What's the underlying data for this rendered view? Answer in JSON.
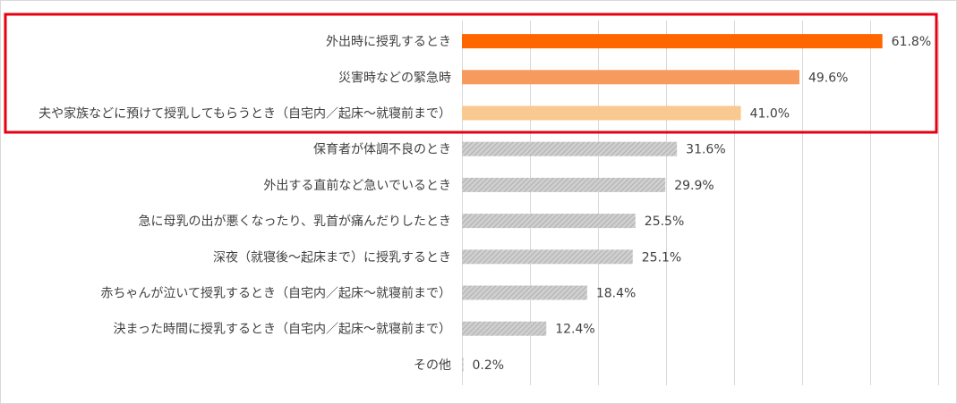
{
  "chart_data": {
    "type": "bar",
    "orientation": "horizontal",
    "categories": [
      "外出時に授乳するとき",
      "災害時などの緊急時",
      "夫や家族などに預けて授乳してもらうとき（自宅内／起床〜就寝前まで）",
      "保育者が体調不良のとき",
      "外出する直前など急いでいるとき",
      "急に母乳の出が悪くなったり、乳首が痛んだりしたとき",
      "深夜（就寝後〜起床まで）に授乳するとき",
      "赤ちゃんが泣いて授乳するとき（自宅内／起床〜就寝前まで）",
      "決まった時間に授乳するとき（自宅内／起床〜就寝前まで）",
      "その他"
    ],
    "values": [
      61.8,
      49.6,
      41.0,
      31.6,
      29.9,
      25.5,
      25.1,
      18.4,
      12.4,
      0.2
    ],
    "value_labels": [
      "61.8%",
      "49.6%",
      "41.0%",
      "31.6%",
      "29.9%",
      "25.5%",
      "25.1%",
      "18.4%",
      "12.4%",
      "0.2%"
    ],
    "xlim": [
      0,
      70
    ],
    "grid": true,
    "highlighted_categories": [
      0,
      1,
      2
    ],
    "colors": {
      "bars": [
        "#ff6600",
        "#f79a5e",
        "#fac991",
        "#bfbfbf",
        "#bfbfbf",
        "#bfbfbf",
        "#bfbfbf",
        "#bfbfbf",
        "#bfbfbf",
        "#bfbfbf"
      ],
      "highlight_border": "#e60012",
      "gridline": "#d9d9d9",
      "text": "#404040"
    }
  }
}
